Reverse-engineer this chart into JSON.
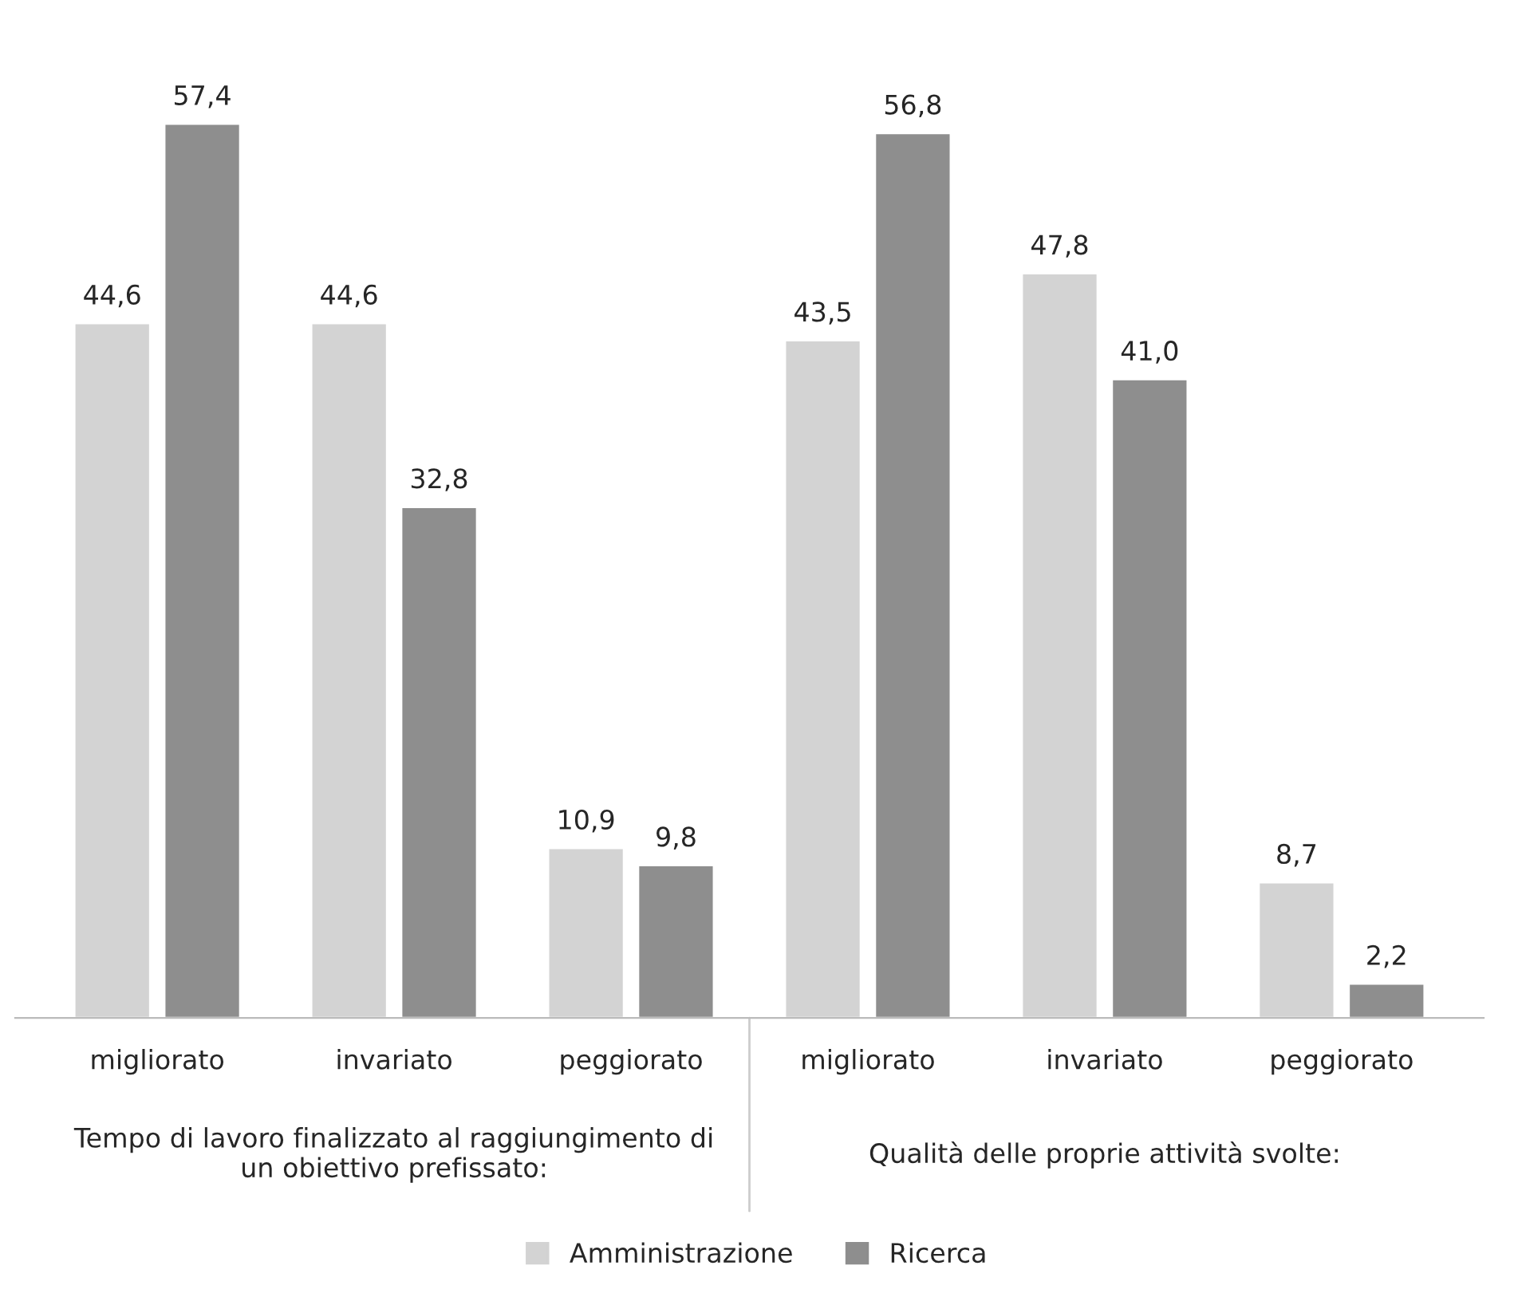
{
  "chart_data": {
    "type": "bar",
    "categories": [
      "migliorato",
      "invariato",
      "peggiorato",
      "migliorato",
      "invariato",
      "peggiorato"
    ],
    "series": [
      {
        "name": "Amministrazione",
        "color": "#d3d3d3",
        "values": [
          44.6,
          44.6,
          10.9,
          43.5,
          47.8,
          8.7
        ],
        "value_labels": [
          "44,6",
          "44,6",
          "10,9",
          "43,5",
          "47,8",
          "8,7"
        ]
      },
      {
        "name": "Ricerca",
        "color": "#8e8e8e",
        "values": [
          57.4,
          32.8,
          9.8,
          56.8,
          41.0,
          2.2
        ],
        "value_labels": [
          "57,4",
          "32,8",
          "9,8",
          "56,8",
          "41,0",
          "2,2"
        ]
      }
    ],
    "annotations": [
      "Tempo di lavoro finalizzato al raggiungimento di un obiettivo prefissato:",
      "Qualità delle proprie attività svolte:"
    ],
    "legend": "bottom",
    "grid": false
  }
}
